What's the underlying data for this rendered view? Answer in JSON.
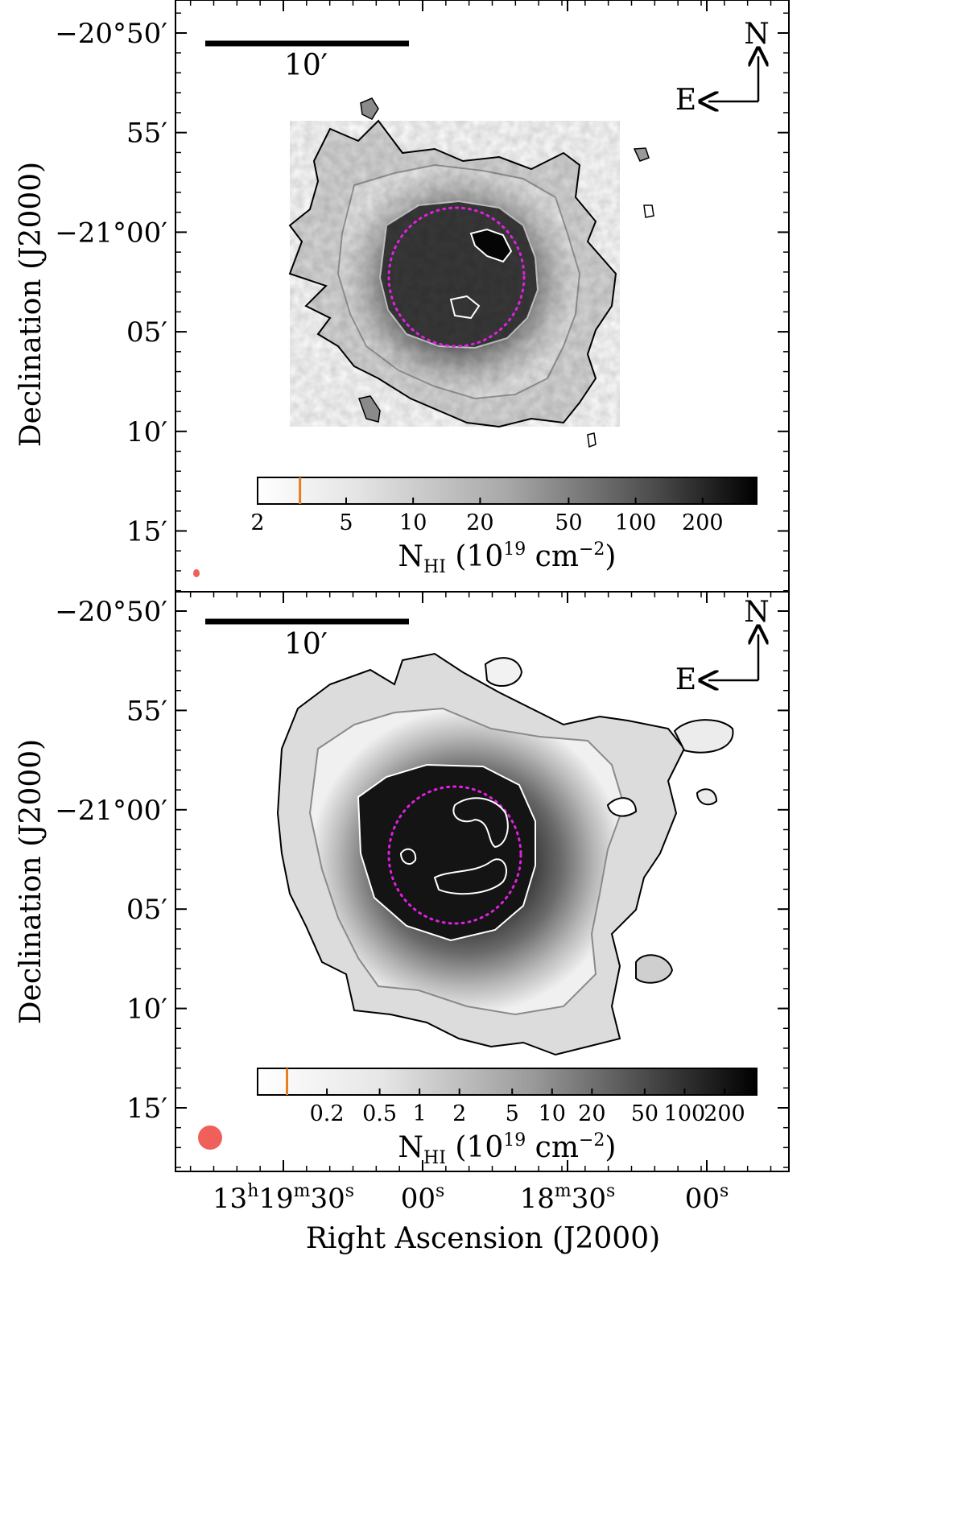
{
  "chart_data": [
    {
      "type": "heatmap",
      "panel": "top",
      "ylabel": "Declination (J2000)",
      "xlabel": "",
      "y_ticks": [
        "−20°50′",
        "55′",
        "−21°00′",
        "05′",
        "10′",
        "15′"
      ],
      "x_ticks": [],
      "scale_bar": "10′",
      "compass": {
        "north": "N",
        "east": "E"
      },
      "colorbar": {
        "label_main": "N",
        "label_sub": "HI",
        "label_units_prefix": " (10",
        "label_exp": "19",
        "label_units_mid": " cm",
        "label_exp2": "−2",
        "label_units_suffix": ")",
        "scale": "log",
        "range": [
          2,
          350
        ],
        "ticks": [
          2,
          5,
          10,
          20,
          50,
          100,
          200
        ],
        "tick_labels": [
          "2",
          "5",
          "10",
          "20",
          "50",
          "100",
          "200"
        ],
        "marker_value": 3.1,
        "marker_color": "#e87d1e"
      },
      "beam_color": "#f0605a",
      "dotted_circle_color": "#e020e0",
      "grid": false
    },
    {
      "type": "heatmap",
      "panel": "bottom",
      "ylabel": "Declination (J2000)",
      "xlabel": "Right Ascension (J2000)",
      "y_ticks": [
        "−20°50′",
        "55′",
        "−21°00′",
        "05′",
        "10′",
        "15′"
      ],
      "x_ticks": [
        "13h19m30s",
        "00s",
        "18m30s",
        "00s"
      ],
      "scale_bar": "10′",
      "compass": {
        "north": "N",
        "east": "E"
      },
      "colorbar": {
        "label_main": "N",
        "label_sub": "HI",
        "label_units_prefix": " (10",
        "label_exp": "19",
        "label_units_mid": " cm",
        "label_exp2": "−2",
        "label_units_suffix": ")",
        "scale": "log",
        "range": [
          0.06,
          350
        ],
        "ticks": [
          0.2,
          0.5,
          1,
          2,
          5,
          10,
          20,
          50,
          100,
          200
        ],
        "tick_labels": [
          "0.2",
          "0.5",
          "1",
          "2",
          "5",
          "10",
          "20",
          "50",
          "100",
          "200"
        ],
        "marker_value": 0.1,
        "marker_color": "#e87d1e"
      },
      "beam_color": "#f0605a",
      "dotted_circle_color": "#e020e0",
      "grid": false
    }
  ],
  "x_tick_parts": [
    {
      "a": "13",
      "b": "h",
      "c": "19",
      "d": "m",
      "e": "30",
      "f": "s"
    },
    {
      "a": "00",
      "f": "s"
    },
    {
      "a": "18",
      "d": "m",
      "e": "30",
      "f": "s"
    },
    {
      "a": "00",
      "f": "s"
    }
  ]
}
